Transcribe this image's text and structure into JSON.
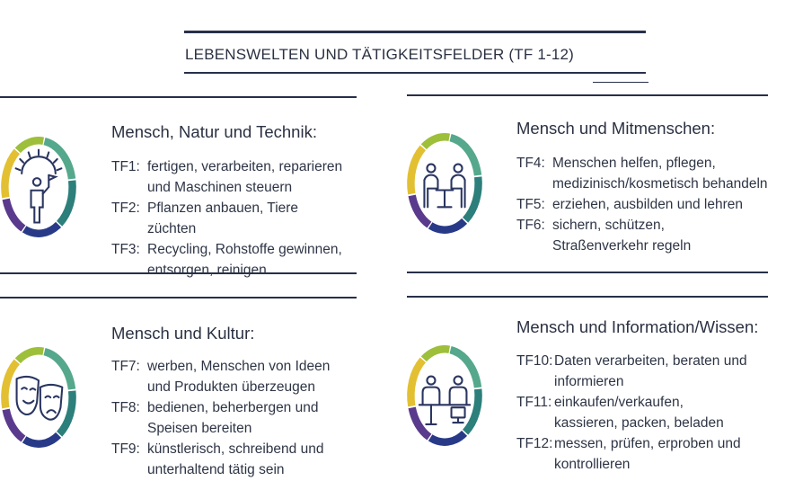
{
  "header": {
    "title": "LEBENSWELTEN UND TÄTIGKEITSFELDER (TF 1-12)"
  },
  "colors": {
    "green": "#9dbf3a",
    "teal": "#55a88c",
    "darkteal": "#2c7f7a",
    "navy": "#283a87",
    "purple": "#5a3a8c",
    "yellow": "#e2c032",
    "line": "#27304a",
    "icon_stroke": "#2a3560"
  },
  "blocks": [
    {
      "title": "Mensch, Natur und Technik:",
      "icon": "worker-sun-icon",
      "items": [
        {
          "code": "TF1:",
          "text": "fertigen, verarbeiten, reparieren und Maschinen steuern"
        },
        {
          "code": "TF2:",
          "text": "Pflanzen anbauen, Tiere züchten"
        },
        {
          "code": "TF3:",
          "text": "Recycling, Rohstoffe gewinnen, entsorgen, reinigen"
        }
      ]
    },
    {
      "title": "Mensch und Mitmenschen:",
      "icon": "two-people-table-icon",
      "items": [
        {
          "code": "TF4:",
          "text": "Menschen helfen, pflegen, medizinisch/kosmetisch behandeln"
        },
        {
          "code": "TF5:",
          "text": "erziehen, ausbilden und lehren"
        },
        {
          "code": "TF6:",
          "text": "sichern, schützen, Straßenverkehr regeln"
        }
      ]
    },
    {
      "title": "Mensch und Kultur:",
      "icon": "theater-masks-icon",
      "items": [
        {
          "code": "TF7:",
          "text": "werben, Menschen von Ideen und Produkten überzeugen"
        },
        {
          "code": "TF8:",
          "text": "bedienen, beherbergen und Speisen bereiten"
        },
        {
          "code": "TF9:",
          "text": "künstlerisch, schreibend und unterhaltend tätig sein"
        }
      ]
    },
    {
      "title": "Mensch und Information/Wissen:",
      "icon": "people-computer-icon",
      "items": [
        {
          "code": "TF10:",
          "text": "Daten verarbeiten, beraten und informieren"
        },
        {
          "code": "TF11:",
          "text": "einkaufen/verkaufen, kassieren, packen, beladen"
        },
        {
          "code": "TF12:",
          "text": "messen, prüfen, erproben und kontrollieren"
        }
      ]
    }
  ]
}
